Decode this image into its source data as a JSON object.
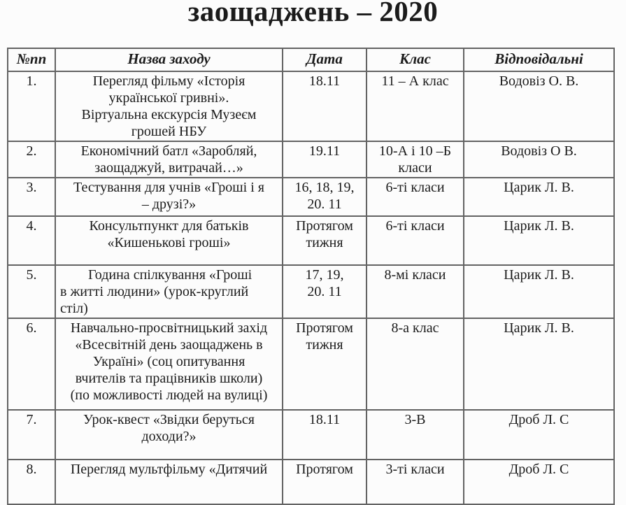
{
  "page": {
    "title": "заощаджень – 2020"
  },
  "table": {
    "headers": {
      "num": "№пп",
      "name": "Назва заходу",
      "date": "Дата",
      "class": "Клас",
      "resp": "Відповідальні"
    },
    "rows": [
      {
        "num": "1.",
        "name": "Перегляд фільму «Історія\nукраїнської гривні».\nВіртуальна екскурсія Музеєм\nгрошей НБУ",
        "date": "18.11",
        "class": "11 – А клас",
        "resp": "Водовіз О. В."
      },
      {
        "num": "2.",
        "name": "Економічний батл «Заробляй,\nзаощаджуй, витрачай…»",
        "date": "19.11",
        "class": "10-А і 10 –Б\nкласи",
        "resp": "Водовіз О В."
      },
      {
        "num": "3.",
        "name": "Тестування для учнів «Гроші і я\n– друзі?»",
        "date": "16, 18, 19,\n20. 11",
        "class": "6-ті класи",
        "resp": "Царик Л. В."
      },
      {
        "num": "4.",
        "name": "Консультпункт для батьків\n«Кишенькові гроші»",
        "date": "Протягом\nтижня",
        "class": "6-ті класи",
        "resp": "Царик Л. В."
      },
      {
        "num": "5.",
        "name": "Година спілкування «Гроші\nв житті людини» (урок-круглий\nстіл)",
        "date": "17, 19,\n20. 11",
        "class": "8-мі класи",
        "resp": "Царик Л. В."
      },
      {
        "num": "6.",
        "name": "Навчально-просвітницький захід\n«Всесвітній день заощаджень в\nУкраїні» (соц опитування\nвчителів та працівників школи)\n(по можливості людей на вулиці)",
        "date": "Протягом\nтижня",
        "class": "8-а клас",
        "resp": "Царик Л. В."
      },
      {
        "num": "7.",
        "name": "Урок-квест «Звідки беруться\nдоходи?»",
        "date": "18.11",
        "class": "3-В",
        "resp": "Дроб Л. С"
      },
      {
        "num": "8.",
        "name": "Перегляд мультфільму «Дитячий",
        "date": "Протягом",
        "class": "3-ті класи",
        "resp": "Дроб Л. С"
      }
    ]
  }
}
